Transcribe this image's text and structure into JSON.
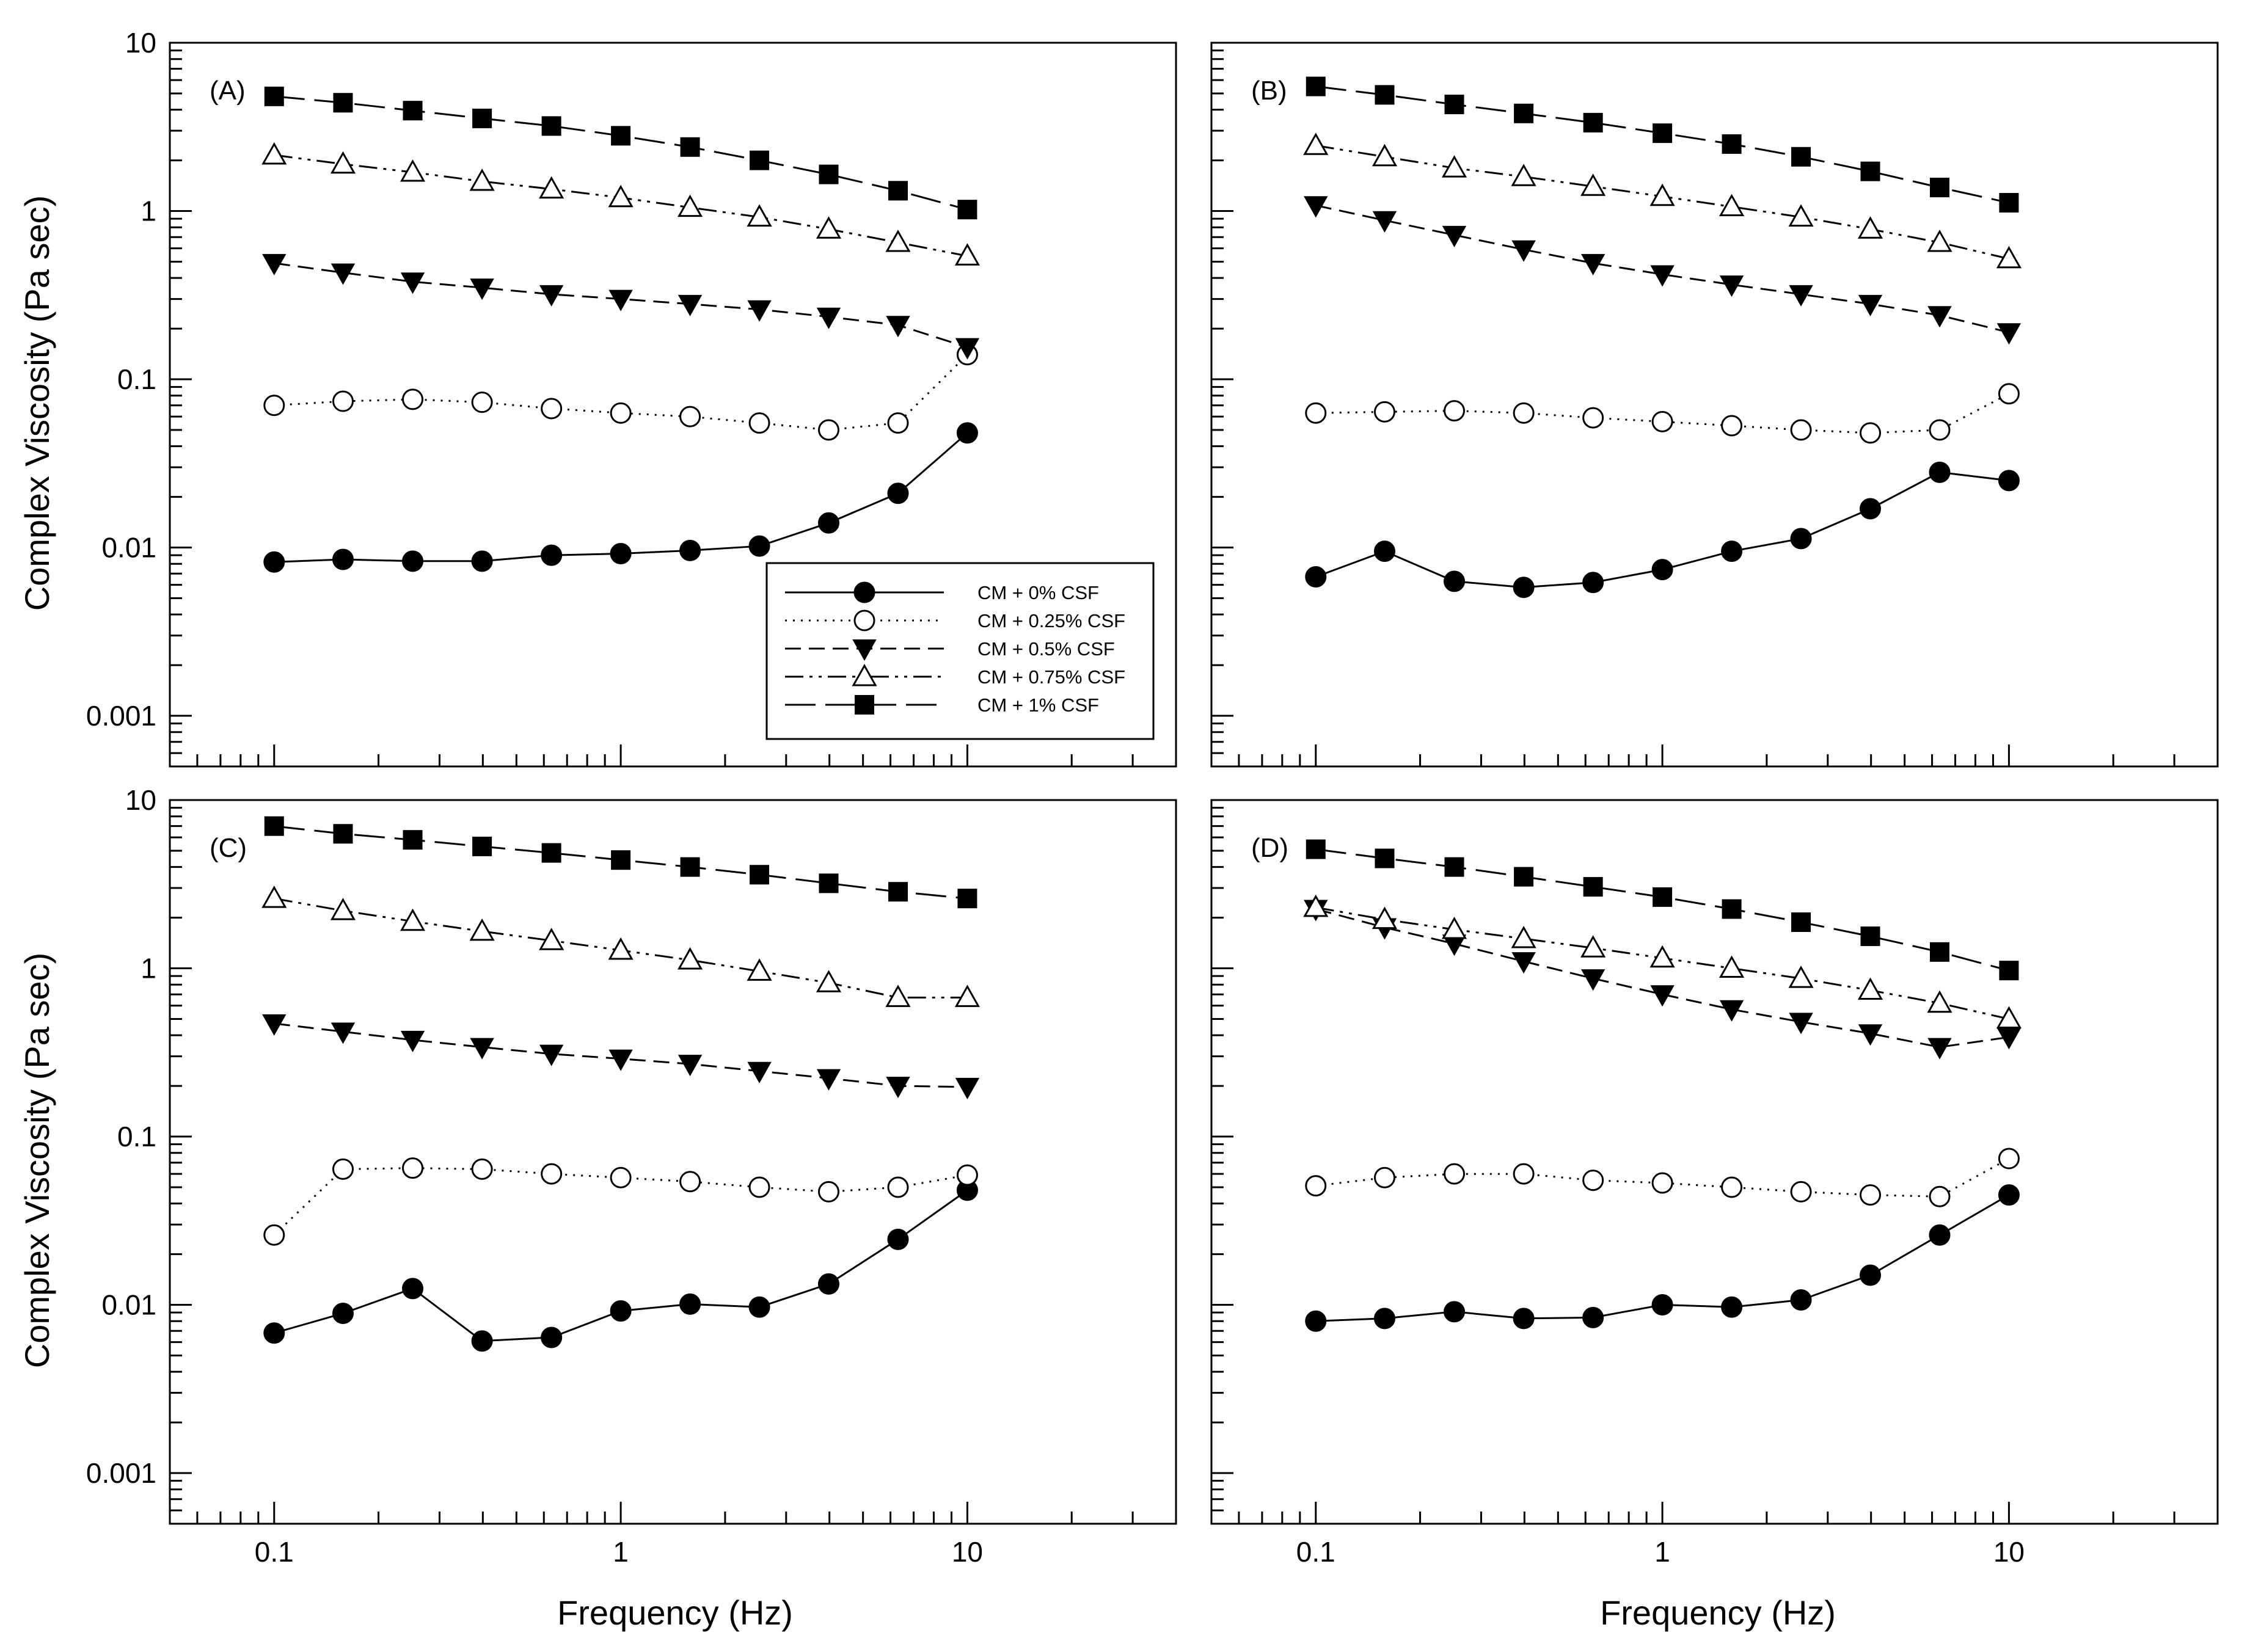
{
  "figure": {
    "xlabel": "Frequency (Hz)",
    "ylabel": "Complex Viscosity (Pa sec)",
    "x_tick_labels": [
      "0.1",
      "1",
      "10"
    ],
    "y_tick_labels": [
      "0.001",
      "0.01",
      "0.1",
      "1",
      "10"
    ],
    "colors": {
      "ink": "#000000",
      "background": "#ffffff"
    }
  },
  "chart_data": [
    {
      "type": "line",
      "panel": "(A)",
      "xscale": "log",
      "yscale": "log",
      "xlim": [
        0.05,
        40
      ],
      "ylim": [
        0.0005,
        10
      ],
      "xlabel": "Frequency (Hz)",
      "ylabel": "Complex Viscosity (Pa sec)",
      "x": [
        0.1,
        0.158,
        0.251,
        0.398,
        0.631,
        1,
        1.585,
        2.512,
        3.981,
        6.31,
        10
      ],
      "legend_position": "bottom-right",
      "series": [
        {
          "name": "CM + 0% CSF",
          "marker": "circle-filled",
          "line": "solid",
          "values": [
            0.0082,
            0.0085,
            0.0083,
            0.0083,
            0.009,
            0.0092,
            0.0096,
            0.0102,
            0.014,
            0.021,
            0.048
          ]
        },
        {
          "name": "CM + 0.25% CSF",
          "marker": "circle-open",
          "line": "dotted",
          "values": [
            0.07,
            0.074,
            0.076,
            0.073,
            0.067,
            0.063,
            0.06,
            0.055,
            0.05,
            0.055,
            0.14
          ]
        },
        {
          "name": "CM + 0.5% CSF",
          "marker": "triangle-down-filled",
          "line": "dashed",
          "values": [
            0.49,
            0.43,
            0.38,
            0.35,
            0.32,
            0.3,
            0.28,
            0.26,
            0.235,
            0.21,
            0.155
          ]
        },
        {
          "name": "CM + 0.75% CSF",
          "marker": "triangle-up-open",
          "line": "dash-dot-dot",
          "values": [
            2.15,
            1.9,
            1.7,
            1.5,
            1.35,
            1.2,
            1.05,
            0.92,
            0.78,
            0.65,
            0.54
          ]
        },
        {
          "name": "CM + 1% CSF",
          "marker": "square-filled",
          "line": "long-dash",
          "values": [
            4.8,
            4.4,
            3.95,
            3.55,
            3.2,
            2.8,
            2.4,
            2.0,
            1.65,
            1.32,
            1.02
          ]
        }
      ]
    },
    {
      "type": "line",
      "panel": "(B)",
      "xscale": "log",
      "yscale": "log",
      "xlim": [
        0.05,
        40
      ],
      "ylim": [
        0.0005,
        10
      ],
      "x": [
        0.1,
        0.158,
        0.251,
        0.398,
        0.631,
        1,
        1.585,
        2.512,
        3.981,
        6.31,
        10
      ],
      "series": [
        {
          "name": "CM + 0% CSF",
          "marker": "circle-filled",
          "line": "solid",
          "values": [
            0.0067,
            0.0095,
            0.0063,
            0.0058,
            0.0062,
            0.0074,
            0.0095,
            0.0113,
            0.017,
            0.028,
            0.025
          ]
        },
        {
          "name": "CM + 0.25% CSF",
          "marker": "circle-open",
          "line": "dotted",
          "values": [
            0.063,
            0.064,
            0.065,
            0.063,
            0.059,
            0.056,
            0.053,
            0.05,
            0.048,
            0.05,
            0.082
          ]
        },
        {
          "name": "CM + 0.5% CSF",
          "marker": "triangle-down-filled",
          "line": "dashed",
          "values": [
            1.08,
            0.88,
            0.72,
            0.59,
            0.49,
            0.42,
            0.365,
            0.32,
            0.28,
            0.24,
            0.19
          ]
        },
        {
          "name": "CM + 0.75% CSF",
          "marker": "triangle-up-open",
          "line": "dash-dot-dot",
          "values": [
            2.45,
            2.1,
            1.8,
            1.6,
            1.4,
            1.22,
            1.06,
            0.92,
            0.78,
            0.65,
            0.52
          ]
        },
        {
          "name": "CM + 1% CSF",
          "marker": "square-filled",
          "line": "long-dash",
          "values": [
            5.5,
            4.9,
            4.3,
            3.8,
            3.35,
            2.9,
            2.5,
            2.1,
            1.72,
            1.38,
            1.12
          ]
        }
      ]
    },
    {
      "type": "line",
      "panel": "(C)",
      "xscale": "log",
      "yscale": "log",
      "xlim": [
        0.05,
        40
      ],
      "ylim": [
        0.0005,
        10
      ],
      "x": [
        0.1,
        0.158,
        0.251,
        0.398,
        0.631,
        1,
        1.585,
        2.512,
        3.981,
        6.31,
        10
      ],
      "series": [
        {
          "name": "CM + 0% CSF",
          "marker": "circle-filled",
          "line": "solid",
          "values": [
            0.0068,
            0.0089,
            0.0125,
            0.0061,
            0.0064,
            0.0092,
            0.0101,
            0.0097,
            0.0133,
            0.0245,
            0.048
          ]
        },
        {
          "name": "CM + 0.25% CSF",
          "marker": "circle-open",
          "line": "dotted",
          "values": [
            0.026,
            0.064,
            0.065,
            0.064,
            0.06,
            0.057,
            0.054,
            0.05,
            0.047,
            0.05,
            0.059
          ]
        },
        {
          "name": "CM + 0.5% CSF",
          "marker": "triangle-down-filled",
          "line": "dashed",
          "values": [
            0.47,
            0.42,
            0.375,
            0.34,
            0.31,
            0.29,
            0.27,
            0.245,
            0.222,
            0.2,
            0.197
          ]
        },
        {
          "name": "CM + 0.75% CSF",
          "marker": "triangle-up-open",
          "line": "dash-dot-dot",
          "values": [
            2.6,
            2.2,
            1.9,
            1.66,
            1.46,
            1.28,
            1.12,
            0.96,
            0.82,
            0.67,
            0.67
          ]
        },
        {
          "name": "CM + 1% CSF",
          "marker": "square-filled",
          "line": "long-dash",
          "values": [
            7.0,
            6.3,
            5.8,
            5.3,
            4.85,
            4.4,
            4.0,
            3.6,
            3.2,
            2.85,
            2.6
          ]
        }
      ]
    },
    {
      "type": "line",
      "panel": "(D)",
      "xscale": "log",
      "yscale": "log",
      "xlim": [
        0.05,
        40
      ],
      "ylim": [
        0.0005,
        10
      ],
      "x": [
        0.1,
        0.158,
        0.251,
        0.398,
        0.631,
        1,
        1.585,
        2.512,
        3.981,
        6.31,
        10
      ],
      "series": [
        {
          "name": "CM + 0% CSF",
          "marker": "circle-filled",
          "line": "solid",
          "values": [
            0.008,
            0.0083,
            0.0091,
            0.0083,
            0.0084,
            0.01,
            0.0097,
            0.0107,
            0.015,
            0.026,
            0.045
          ]
        },
        {
          "name": "CM + 0.25% CSF",
          "marker": "circle-open",
          "line": "dotted",
          "values": [
            0.051,
            0.057,
            0.06,
            0.06,
            0.055,
            0.053,
            0.05,
            0.047,
            0.045,
            0.044,
            0.074
          ]
        },
        {
          "name": "CM + 0.5% CSF",
          "marker": "triangle-down-filled",
          "line": "dashed",
          "values": [
            2.25,
            1.75,
            1.4,
            1.1,
            0.87,
            0.7,
            0.57,
            0.48,
            0.41,
            0.34,
            0.39
          ]
        },
        {
          "name": "CM + 0.75% CSF",
          "marker": "triangle-up-open",
          "line": "dash-dot-dot",
          "values": [
            2.3,
            1.95,
            1.7,
            1.5,
            1.32,
            1.15,
            1.0,
            0.87,
            0.74,
            0.62,
            0.5
          ]
        },
        {
          "name": "CM + 1% CSF",
          "marker": "square-filled",
          "line": "long-dash",
          "values": [
            5.1,
            4.5,
            4.0,
            3.5,
            3.05,
            2.65,
            2.25,
            1.88,
            1.55,
            1.25,
            0.97
          ]
        }
      ]
    }
  ]
}
